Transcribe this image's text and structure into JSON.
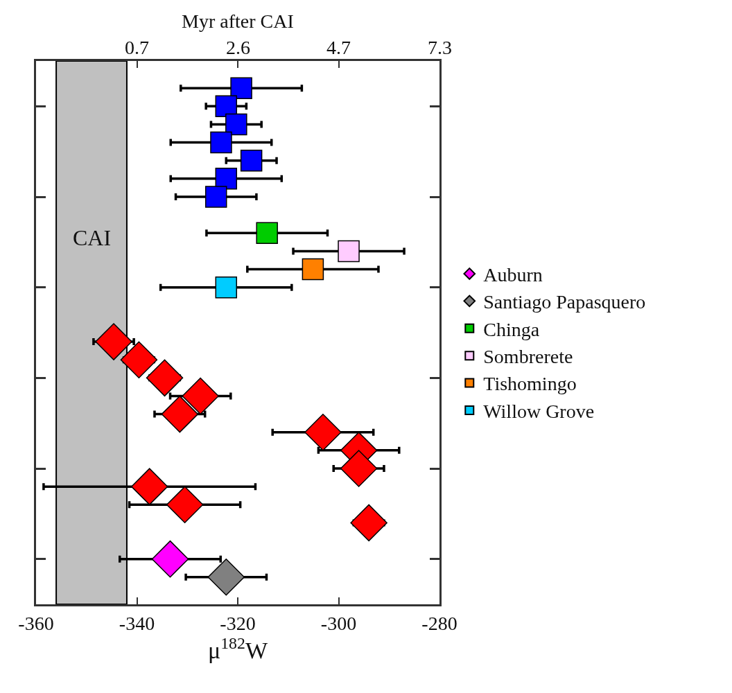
{
  "chart_data": {
    "type": "scatter",
    "orientation": "horizontal",
    "xlabel": "μ$^{182}$W",
    "x2label": "Myr after CAI",
    "categories": [
      null,
      null,
      null,
      null,
      null,
      null,
      null,
      null,
      null,
      null,
      null,
      null,
      null,
      null,
      null,
      null,
      null,
      null,
      null,
      null,
      null,
      null,
      null,
      null,
      null,
      null,
      null,
      null,
      null,
      null
    ],
    "xlim": [
      -360,
      -280
    ],
    "xticks": [
      -360,
      -340,
      -320,
      -300,
      -280
    ],
    "annotations": [
      "0.7",
      "2.6",
      "4.7",
      "7.3"
    ],
    "grid": false,
    "legend": "right",
    "bands": [
      {
        "axis": "x",
        "from": -356,
        "to": -342,
        "label": "CAI",
        "color": "#c0c0c0"
      }
    ],
    "series": [
      {
        "name": "Auburn",
        "color": "#ff00ff",
        "marker": "diamond",
        "values": [
          null,
          null,
          null,
          null,
          null,
          null,
          null,
          null,
          null,
          null,
          null,
          null,
          null,
          null,
          null,
          null,
          null,
          null,
          null,
          null,
          null,
          null,
          null,
          null,
          null,
          null,
          null,
          -333.4,
          null,
          null
        ],
        "errors": [
          null,
          null,
          null,
          null,
          null,
          null,
          null,
          null,
          null,
          null,
          null,
          null,
          null,
          null,
          null,
          null,
          null,
          null,
          null,
          null,
          null,
          null,
          null,
          null,
          null,
          null,
          null,
          10,
          null,
          null
        ]
      },
      {
        "name": "Santiago Papasquero",
        "color": "#808080",
        "marker": "diamond",
        "values": [
          null,
          null,
          null,
          null,
          null,
          null,
          null,
          null,
          null,
          null,
          null,
          null,
          null,
          null,
          null,
          null,
          null,
          null,
          null,
          null,
          null,
          null,
          null,
          null,
          null,
          null,
          null,
          null,
          -322.3,
          null
        ],
        "errors": [
          null,
          null,
          null,
          null,
          null,
          null,
          null,
          null,
          null,
          null,
          null,
          null,
          null,
          null,
          null,
          null,
          null,
          null,
          null,
          null,
          null,
          null,
          null,
          null,
          null,
          null,
          null,
          null,
          8,
          null
        ]
      },
      {
        "name": "Chinga",
        "color": "#00cc00",
        "marker": "square",
        "values": [
          null,
          null,
          null,
          null,
          null,
          null,
          null,
          null,
          null,
          -314.2,
          null,
          null,
          null,
          null,
          null,
          null,
          null,
          null,
          null,
          null,
          null,
          null,
          null,
          null,
          null,
          null,
          null,
          null,
          null,
          null
        ],
        "errors": [
          null,
          null,
          null,
          null,
          null,
          null,
          null,
          null,
          null,
          12,
          null,
          null,
          null,
          null,
          null,
          null,
          null,
          null,
          null,
          null,
          null,
          null,
          null,
          null,
          null,
          null,
          null,
          null,
          null,
          null
        ]
      },
      {
        "name": "Sombrerete",
        "color": "#ffccff",
        "marker": "square",
        "values": [
          null,
          null,
          null,
          null,
          null,
          null,
          null,
          null,
          null,
          null,
          -298,
          null,
          null,
          null,
          null,
          null,
          null,
          null,
          null,
          null,
          null,
          null,
          null,
          null,
          null,
          null,
          null,
          null,
          null,
          null
        ],
        "errors": [
          null,
          null,
          null,
          null,
          null,
          null,
          null,
          null,
          null,
          null,
          11,
          null,
          null,
          null,
          null,
          null,
          null,
          null,
          null,
          null,
          null,
          null,
          null,
          null,
          null,
          null,
          null,
          null,
          null,
          null
        ]
      },
      {
        "name": "Tishomingo",
        "color": "#ff8000",
        "marker": "square",
        "values": [
          null,
          null,
          null,
          null,
          null,
          null,
          null,
          null,
          null,
          null,
          null,
          -305.1,
          null,
          null,
          null,
          null,
          null,
          null,
          null,
          null,
          null,
          null,
          null,
          null,
          null,
          null,
          null,
          null,
          null,
          null
        ],
        "errors": [
          null,
          null,
          null,
          null,
          null,
          null,
          null,
          null,
          null,
          null,
          null,
          13,
          null,
          null,
          null,
          null,
          null,
          null,
          null,
          null,
          null,
          null,
          null,
          null,
          null,
          null,
          null,
          null,
          null,
          null
        ]
      },
      {
        "name": "Willow Grove",
        "color": "#00ccff",
        "marker": "square",
        "values": [
          null,
          null,
          null,
          null,
          null,
          null,
          null,
          null,
          null,
          null,
          null,
          null,
          -322.3,
          null,
          null,
          null,
          null,
          null,
          null,
          null,
          null,
          null,
          null,
          null,
          null,
          null,
          null,
          null,
          null,
          null
        ],
        "errors": [
          null,
          null,
          null,
          null,
          null,
          null,
          null,
          null,
          null,
          null,
          null,
          null,
          13,
          null,
          null,
          null,
          null,
          null,
          null,
          null,
          null,
          null,
          null,
          null,
          null,
          null,
          null,
          null,
          null,
          null
        ]
      },
      {
        "color": "#0000ff",
        "marker": "square",
        "values": [
          null,
          -319.3,
          -322.3,
          -320.3,
          -323.3,
          -317.3,
          -322.3,
          -324.3,
          null,
          null,
          null,
          null,
          null,
          null,
          null,
          null,
          null,
          null,
          null,
          null,
          null,
          null,
          null,
          null,
          null,
          null,
          null,
          null,
          null,
          null
        ],
        "errors": [
          null,
          12,
          4,
          5,
          10,
          5,
          11,
          8,
          null,
          null,
          null,
          null,
          null,
          null,
          null,
          null,
          null,
          null,
          null,
          null,
          null,
          null,
          null,
          null,
          null,
          null,
          null,
          null,
          null,
          null
        ]
      },
      {
        "color": "#ff0000",
        "marker": "diamond",
        "values": [
          null,
          null,
          null,
          null,
          null,
          null,
          null,
          null,
          null,
          null,
          null,
          null,
          null,
          null,
          null,
          -344.6,
          -339.6,
          -334.5,
          -327.4,
          -331.5,
          -303.1,
          -296,
          -296,
          -337.5,
          -330.5,
          -294,
          null,
          null,
          null,
          null
        ],
        "errors": [
          null,
          null,
          null,
          null,
          null,
          null,
          null,
          null,
          null,
          null,
          null,
          null,
          null,
          null,
          null,
          4,
          3,
          3,
          6,
          5,
          10,
          8,
          5,
          21,
          11,
          3,
          null,
          null,
          null,
          null
        ]
      }
    ]
  }
}
